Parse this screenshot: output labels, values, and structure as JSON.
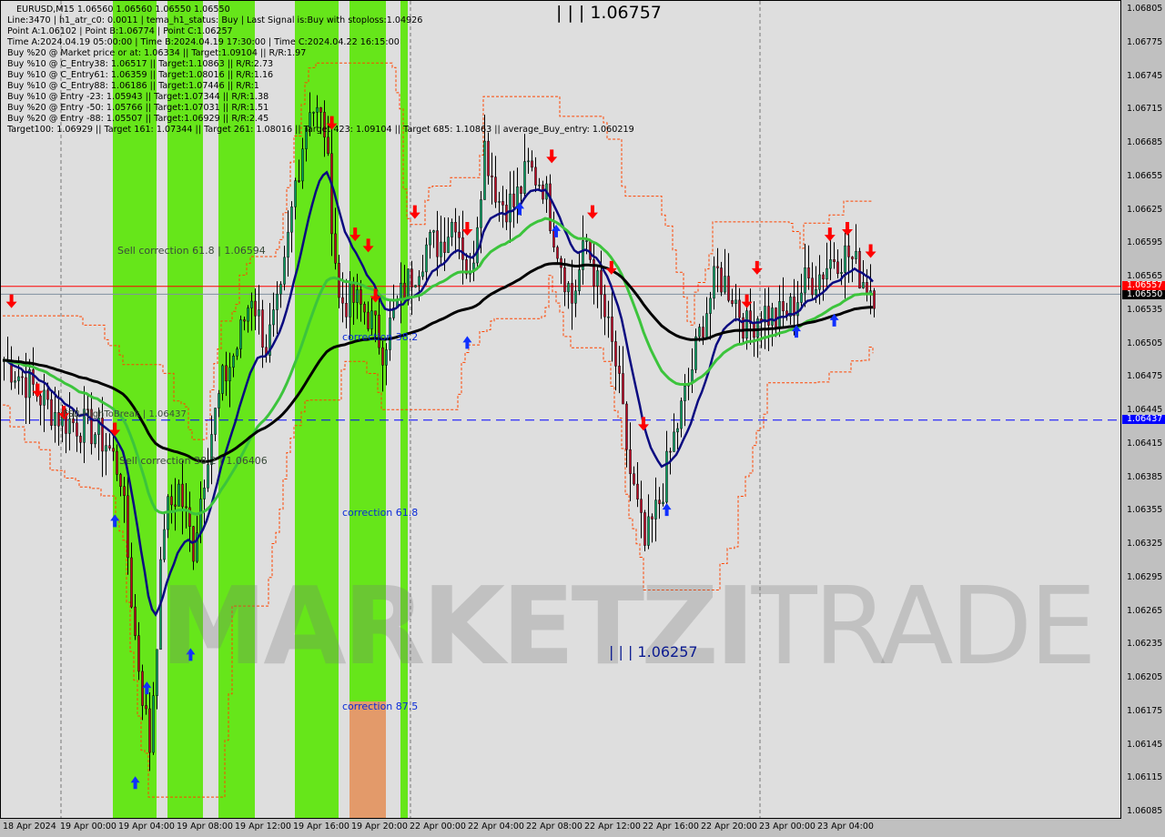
{
  "window": {
    "symbol_line": "EURUSD,M15  1.06560 1.06560 1.06550 1.06550"
  },
  "info_lines": [
    "Line:3470 | h1_atr_c0: 0.0011 | tema_h1_status: Buy | Last Signal is:Buy with stoploss:1.04926",
    "Point A:1.06102 | Point B:1.06774 | Point C:1.06257",
    "Time A:2024.04.19 05:00:00 | Time B:2024.04.19 17:30:00 | Time C:2024.04.22 16:15:00",
    "Buy %20 @ Market price or at: 1.06334 || Target:1.09104 || R/R:1.97",
    "Buy %10 @ C_Entry38: 1.06517 || Target:1.10863 || R/R:2.73",
    "Buy %10 @ C_Entry61: 1.06359 || Target:1.08016 || R/R:1.16",
    "Buy %10 @ C_Entry88: 1.06186 || Target:1.07446 || R/R:1",
    "Buy %10 @ Entry -23: 1.05943 || Target:1.07344 || R/R:1.38",
    "Buy %20 @ Entry -50: 1.05766 || Target:1.07031 || R/R:1.51",
    "Buy %20 @ Entry -88: 1.05507 || Target:1.06929 || R/R:2.45",
    "Target100: 1.06929 || Target 161: 1.07344 || Target 261: 1.08016 || Target 423: 1.09104 || Target 685: 1.10863 || average_Buy_entry: 1.060219"
  ],
  "annotations": {
    "sell_61": "Sell correction 61.8 | 1.06594",
    "sell_38": "Sell correction 38.2 | 1.06406",
    "fsb": "FSB-HighToBreak | 1.06437",
    "corr_38": "correction 38.2",
    "corr_61": "correction 61.8",
    "corr_87": "correction 87.5",
    "high": "| | | 1.06757",
    "low": "| | | 1.06257"
  },
  "watermark": {
    "bold": "MARKETZI",
    "light": "TRADE"
  },
  "colors": {
    "bull": "#00a060",
    "bear": "#c00020",
    "ma_fast": "#0a0a80",
    "ma_mid": "#3cc43c",
    "ma_slow": "#000000",
    "band_green": "#66e61a",
    "band_orange": "#e39a6a",
    "line_red": "#ff0000",
    "line_blue": "#0000ff",
    "envelope": "#ff4400"
  },
  "chart_data": {
    "type": "candlestick",
    "timeframe": "M15",
    "symbol": "EURUSD",
    "ylim": [
      1.0607,
      1.0682
    ],
    "y_ticks": [
      "1.06805",
      "1.06775",
      "1.06745",
      "1.06715",
      "1.06685",
      "1.06655",
      "1.06625",
      "1.06595",
      "1.06565",
      "1.06535",
      "1.06505",
      "1.06475",
      "1.06445",
      "1.06415",
      "1.06385",
      "1.06355",
      "1.06325",
      "1.06295",
      "1.06265",
      "1.06235",
      "1.06205",
      "1.06175",
      "1.06145",
      "1.06115",
      "1.06085"
    ],
    "x_ticks": [
      "18 Apr 2024",
      "19 Apr 00:00",
      "19 Apr 04:00",
      "19 Apr 08:00",
      "19 Apr 12:00",
      "19 Apr 16:00",
      "19 Apr 20:00",
      "22 Apr 00:00",
      "22 Apr 04:00",
      "22 Apr 08:00",
      "22 Apr 12:00",
      "22 Apr 16:00",
      "22 Apr 20:00",
      "23 Apr 00:00",
      "23 Apr 04:00"
    ],
    "hourly_closes": [
      1.06491,
      1.06478,
      1.06466,
      1.0645,
      1.06438,
      1.06434,
      1.06429,
      1.06417,
      1.06389,
      1.06242,
      1.06144,
      1.06348,
      1.06376,
      1.06323,
      1.06413,
      1.0647,
      1.06503,
      1.06552,
      1.06503,
      1.06544,
      1.0665,
      1.06723,
      1.06699,
      1.06544,
      1.06544,
      1.06532,
      1.06503,
      1.0654,
      1.06568,
      1.06593,
      1.06597,
      1.06621,
      1.0656,
      1.06683,
      1.06634,
      1.0663,
      1.06662,
      1.0665,
      1.06593,
      1.06544,
      1.06597,
      1.06544,
      1.06487,
      1.06389,
      1.06323,
      1.06364,
      1.06421,
      1.0647,
      1.06527,
      1.06568,
      1.06552,
      1.06519,
      1.06536,
      1.06527,
      1.06536,
      1.0656,
      1.06568,
      1.06585,
      1.06585,
      1.06564,
      1.0655
    ],
    "price_lines": [
      {
        "price": 1.06557,
        "label": "1.06557",
        "color": "#ff0000",
        "style": "solid"
      },
      {
        "price": 1.0655,
        "label": "1.06550",
        "color": "#000000",
        "style": "solid"
      },
      {
        "price": 1.06437,
        "label": "1.06437",
        "color": "#0000ff",
        "style": "dashed"
      }
    ],
    "signals": [
      {
        "type": "sell",
        "hour": 0.6,
        "price": 1.0654
      },
      {
        "type": "sell",
        "hour": 2.4,
        "price": 1.0646
      },
      {
        "type": "sell",
        "hour": 4.2,
        "price": 1.0644
      },
      {
        "type": "sell",
        "hour": 7.7,
        "price": 1.06425
      },
      {
        "type": "buy",
        "hour": 7.7,
        "price": 1.0635
      },
      {
        "type": "buy",
        "hour": 9.9,
        "price": 1.062
      },
      {
        "type": "buy",
        "hour": 9.1,
        "price": 1.06115
      },
      {
        "type": "buy",
        "hour": 12.9,
        "price": 1.0623
      },
      {
        "type": "sell",
        "hour": 22.6,
        "price": 1.067
      },
      {
        "type": "sell",
        "hour": 24.2,
        "price": 1.066
      },
      {
        "type": "sell",
        "hour": 25.1,
        "price": 1.0659
      },
      {
        "type": "sell",
        "hour": 25.6,
        "price": 1.06545
      },
      {
        "type": "sell",
        "hour": 28.3,
        "price": 1.0662
      },
      {
        "type": "sell",
        "hour": 31.9,
        "price": 1.06605
      },
      {
        "type": "buy",
        "hour": 31.9,
        "price": 1.0651
      },
      {
        "type": "buy",
        "hour": 35.5,
        "price": 1.0663
      },
      {
        "type": "buy",
        "hour": 38.0,
        "price": 1.0661
      },
      {
        "type": "sell",
        "hour": 37.7,
        "price": 1.0667
      },
      {
        "type": "sell",
        "hour": 40.5,
        "price": 1.0662
      },
      {
        "type": "sell",
        "hour": 41.8,
        "price": 1.0657
      },
      {
        "type": "sell",
        "hour": 44.0,
        "price": 1.0643
      },
      {
        "type": "buy",
        "hour": 45.6,
        "price": 1.0636
      },
      {
        "type": "sell",
        "hour": 51.8,
        "price": 1.0657
      },
      {
        "type": "sell",
        "hour": 51.1,
        "price": 1.0654
      },
      {
        "type": "buy",
        "hour": 54.5,
        "price": 1.0652
      },
      {
        "type": "buy",
        "hour": 57.1,
        "price": 1.0653
      },
      {
        "type": "sell",
        "hour": 56.8,
        "price": 1.066
      },
      {
        "type": "sell",
        "hour": 58.0,
        "price": 1.06605
      },
      {
        "type": "sell",
        "hour": 59.6,
        "price": 1.06585
      }
    ]
  }
}
